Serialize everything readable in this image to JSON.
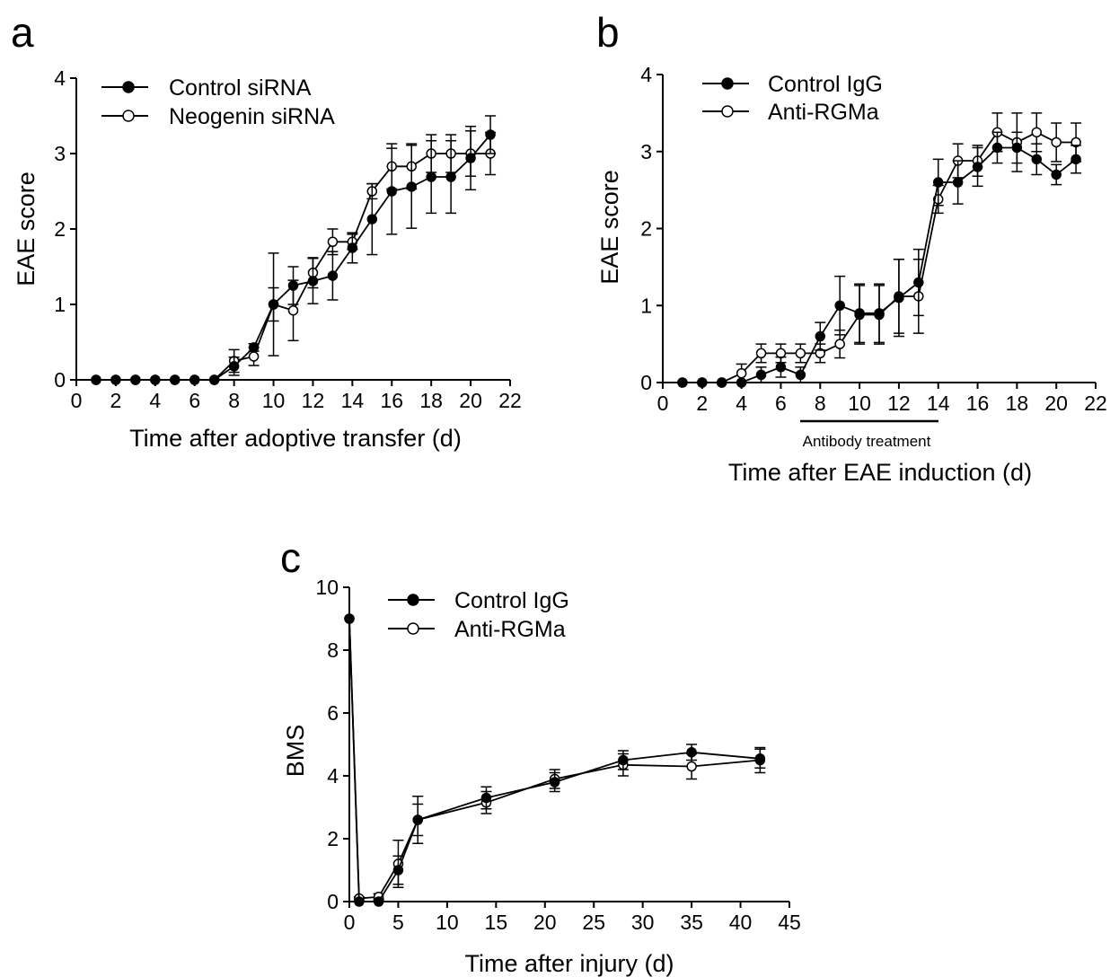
{
  "panel_letters": [
    "a",
    "b",
    "c"
  ],
  "chart_data": [
    {
      "type": "line",
      "xlabel": "Time after adoptive transfer (d)",
      "ylabel": "EAE score",
      "xlim": [
        0,
        22
      ],
      "ylim": [
        0,
        4
      ],
      "xticks": [
        0,
        2,
        4,
        6,
        8,
        10,
        12,
        14,
        16,
        18,
        20,
        22
      ],
      "yticks": [
        0,
        1,
        2,
        3,
        4
      ],
      "grid": false,
      "legend": "top-left",
      "series": [
        {
          "name": "Control siRNA",
          "marker": "filled-circle",
          "x": [
            1,
            2,
            3,
            4,
            5,
            6,
            7,
            8,
            9,
            10,
            11,
            12,
            13,
            14,
            15,
            16,
            17,
            18,
            19,
            20,
            21
          ],
          "y": [
            0,
            0,
            0,
            0,
            0,
            0,
            0,
            0.18,
            0.43,
            1.0,
            1.25,
            1.31,
            1.38,
            1.75,
            2.13,
            2.5,
            2.56,
            2.69,
            2.69,
            2.94,
            3.25
          ],
          "err": [
            0,
            0,
            0,
            0,
            0,
            0,
            0,
            0.12,
            0.05,
            0.68,
            0.25,
            0.3,
            0.32,
            0.2,
            0.47,
            0.57,
            0.55,
            0.48,
            0.48,
            0.42,
            0.25
          ]
        },
        {
          "name": "Neogenin siRNA",
          "marker": "open-circle",
          "x": [
            1,
            2,
            3,
            4,
            5,
            6,
            7,
            8,
            9,
            10,
            11,
            12,
            13,
            14,
            15,
            16,
            17,
            18,
            19,
            20,
            21
          ],
          "y": [
            0,
            0,
            0,
            0,
            0,
            0,
            0,
            0.25,
            0.31,
            1.0,
            0.92,
            1.42,
            1.83,
            1.83,
            2.5,
            2.83,
            2.83,
            3.0,
            3.0,
            3.0,
            3.0
          ],
          "err": [
            0,
            0,
            0,
            0,
            0,
            0,
            0,
            0.15,
            0.12,
            0.22,
            0.4,
            0.2,
            0.17,
            0.1,
            0.1,
            0.3,
            0.3,
            0.25,
            0.25,
            0.3,
            0.28
          ]
        }
      ]
    },
    {
      "type": "line",
      "xlabel": "Time after EAE induction (d)",
      "ylabel": "EAE score",
      "xlim": [
        0,
        22
      ],
      "ylim": [
        0,
        4
      ],
      "xticks": [
        0,
        2,
        4,
        6,
        8,
        10,
        12,
        14,
        16,
        18,
        20,
        22
      ],
      "yticks": [
        0,
        1,
        2,
        3,
        4
      ],
      "grid": false,
      "legend": "top-left",
      "annotation": {
        "text": "Antibody treatment",
        "x_start": 7,
        "x_end": 14
      },
      "series": [
        {
          "name": "Control IgG",
          "marker": "filled-circle",
          "x": [
            1,
            2,
            3,
            4,
            5,
            6,
            7,
            8,
            9,
            10,
            11,
            12,
            13,
            14,
            15,
            16,
            17,
            18,
            19,
            20,
            21
          ],
          "y": [
            0,
            0,
            0,
            0,
            0.1,
            0.2,
            0.1,
            0.6,
            1.0,
            0.9,
            0.9,
            1.1,
            1.3,
            2.6,
            2.6,
            2.8,
            3.05,
            3.05,
            2.9,
            2.7,
            2.9
          ],
          "err": [
            0,
            0,
            0,
            0,
            0.1,
            0.13,
            0.1,
            0.18,
            0.38,
            0.38,
            0.38,
            0.5,
            0.43,
            0.3,
            0.28,
            0.25,
            0.2,
            0.2,
            0.2,
            0.13,
            0.18
          ]
        },
        {
          "name": "Anti-RGMa",
          "marker": "open-circle",
          "x": [
            1,
            2,
            3,
            4,
            5,
            6,
            7,
            8,
            9,
            10,
            11,
            12,
            13,
            14,
            15,
            16,
            17,
            18,
            19,
            20,
            21
          ],
          "y": [
            0,
            0,
            0,
            0.12,
            0.38,
            0.38,
            0.38,
            0.38,
            0.5,
            0.88,
            0.88,
            1.12,
            1.12,
            2.38,
            2.88,
            2.88,
            3.25,
            3.12,
            3.25,
            3.12,
            3.12
          ],
          "err": [
            0,
            0,
            0,
            0.12,
            0.12,
            0.12,
            0.12,
            0.12,
            0.18,
            0.38,
            0.38,
            0.48,
            0.48,
            0.18,
            0.22,
            0.2,
            0.25,
            0.38,
            0.25,
            0.25,
            0.25
          ]
        }
      ]
    },
    {
      "type": "line",
      "xlabel": "Time after injury (d)",
      "ylabel": "BMS",
      "xlim": [
        0,
        45
      ],
      "ylim": [
        0,
        10
      ],
      "xticks": [
        0,
        5,
        10,
        15,
        20,
        25,
        30,
        35,
        40,
        45
      ],
      "yticks": [
        0,
        2,
        4,
        6,
        8,
        10
      ],
      "grid": false,
      "legend": "top-left",
      "series": [
        {
          "name": "Control IgG",
          "marker": "filled-circle",
          "x": [
            0,
            1,
            3,
            5,
            7,
            14,
            21,
            28,
            35,
            42
          ],
          "y": [
            9,
            0,
            0,
            1.0,
            2.6,
            3.3,
            3.8,
            4.5,
            4.75,
            4.55
          ],
          "err": [
            0,
            0,
            0.08,
            0.45,
            0.5,
            0.35,
            0.3,
            0.3,
            0.25,
            0.3
          ]
        },
        {
          "name": "Anti-RGMa",
          "marker": "open-circle",
          "x": [
            0,
            1,
            3,
            5,
            7,
            14,
            21,
            28,
            35,
            42
          ],
          "y": [
            9,
            0.1,
            0.15,
            1.2,
            2.6,
            3.15,
            3.9,
            4.35,
            4.3,
            4.5
          ],
          "err": [
            0,
            0.05,
            0.1,
            0.75,
            0.75,
            0.35,
            0.3,
            0.35,
            0.4,
            0.4
          ]
        }
      ]
    }
  ]
}
